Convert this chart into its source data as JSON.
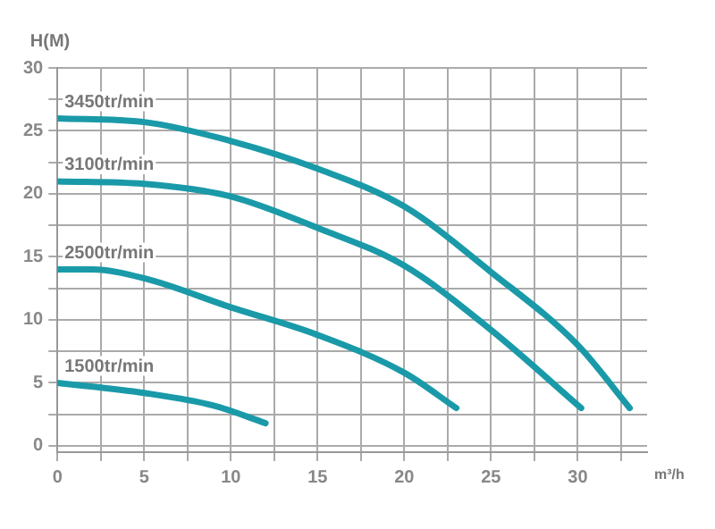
{
  "chart_data": {
    "type": "line",
    "xlabel": "m³/h",
    "ylabel": "H(M)",
    "xlim": [
      0,
      34
    ],
    "ylim": [
      -0.5,
      30
    ],
    "xticks": [
      0,
      {
        "value": 2.5,
        "label": null
      },
      5,
      {
        "value": 7.5,
        "label": null
      },
      10,
      {
        "value": 12.5,
        "label": null
      },
      15,
      {
        "value": 17.5,
        "label": null
      },
      20,
      {
        "value": 22.5,
        "label": null
      },
      25,
      {
        "value": 27.5,
        "label": null
      },
      30,
      {
        "value": 32.5,
        "label": null
      }
    ],
    "yticks": [
      0,
      {
        "value": 2.5,
        "label": null
      },
      5,
      {
        "value": 7.5,
        "label": null
      },
      10,
      {
        "value": 12.5,
        "label": null
      },
      15,
      {
        "value": 17.5,
        "label": null
      },
      20,
      {
        "value": 22.5,
        "label": null
      },
      25,
      {
        "value": 27.5,
        "label": null
      },
      30
    ],
    "grid": true,
    "legend": false,
    "marker": "none",
    "line_style": "solid",
    "series": [
      {
        "name": "3450tr/min",
        "color": "#1a9aa8",
        "x": [
          0,
          5,
          10,
          15,
          20,
          25,
          30,
          33
        ],
        "values": [
          26,
          25.7,
          24.2,
          22,
          19,
          13.8,
          8,
          3
        ]
      },
      {
        "name": "3100tr/min",
        "color": "#1a9aa8",
        "x": [
          0,
          5,
          10,
          15,
          20,
          25,
          30.2
        ],
        "values": [
          21,
          20.8,
          19.8,
          17.3,
          14.3,
          9.2,
          3
        ]
      },
      {
        "name": "2500tr/min",
        "color": "#1a9aa8",
        "x": [
          0,
          2,
          5,
          10,
          15,
          20,
          23
        ],
        "values": [
          14,
          14,
          13.3,
          11,
          8.8,
          5.8,
          3
        ]
      },
      {
        "name": "1500tr/min",
        "color": "#1a9aa8",
        "x": [
          0,
          5,
          9,
          12
        ],
        "values": [
          5,
          4.2,
          3.2,
          1.8
        ]
      }
    ]
  }
}
